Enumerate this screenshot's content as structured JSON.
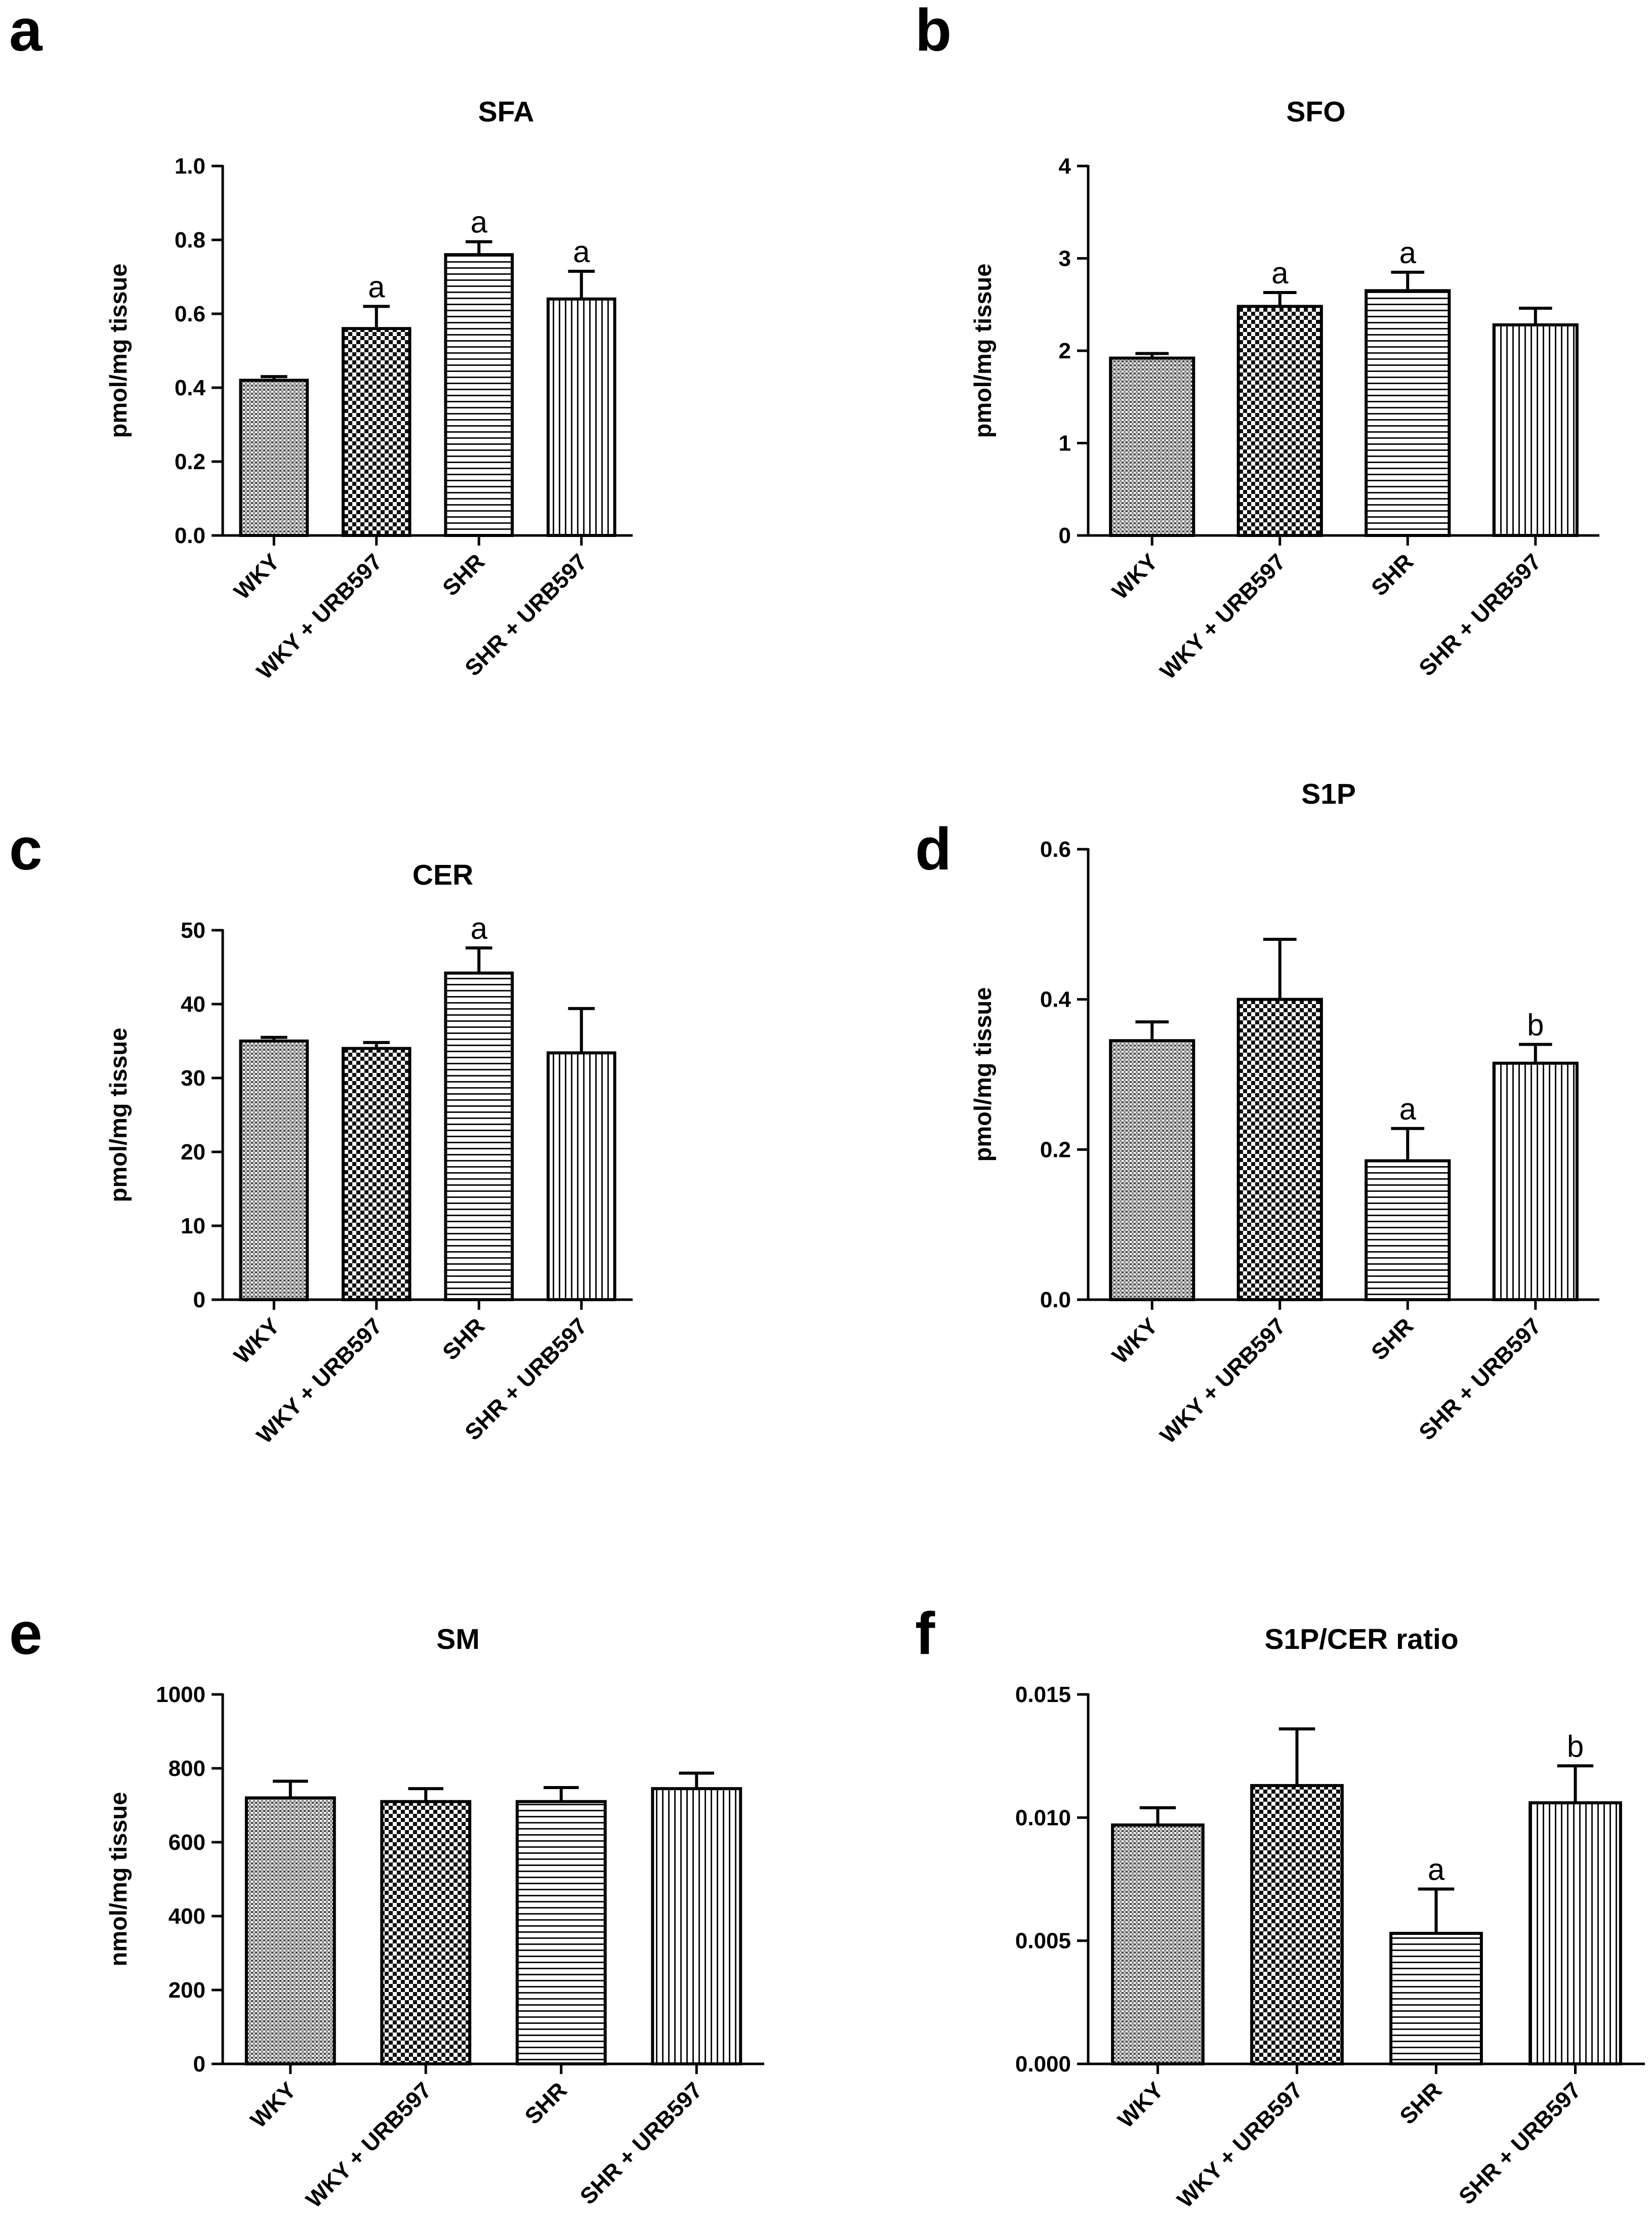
{
  "chart_data": [
    {
      "panel": "a",
      "type": "bar",
      "title": "SFA",
      "xlabel": "",
      "ylabel": "pmol/mg tissue",
      "ylim": [
        0,
        1.0
      ],
      "yticks": [
        "0.0",
        "0.2",
        "0.4",
        "0.6",
        "0.8",
        "1.0"
      ],
      "categories": [
        "WKY",
        "WKY + URB597",
        "SHR",
        "SHR + URB597"
      ],
      "values": [
        0.42,
        0.56,
        0.76,
        0.64
      ],
      "errors": [
        0.01,
        0.06,
        0.035,
        0.075
      ],
      "annotations": [
        "",
        "a",
        "a",
        "a"
      ]
    },
    {
      "panel": "b",
      "type": "bar",
      "title": "SFO",
      "xlabel": "",
      "ylabel": "pmol/mg tissue",
      "ylim": [
        0,
        4
      ],
      "yticks": [
        "0",
        "1",
        "2",
        "3",
        "4"
      ],
      "categories": [
        "WKY",
        "WKY + URB597",
        "SHR",
        "SHR + URB597"
      ],
      "values": [
        1.92,
        2.48,
        2.65,
        2.28
      ],
      "errors": [
        0.05,
        0.15,
        0.2,
        0.18
      ],
      "annotations": [
        "",
        "a",
        "a",
        ""
      ]
    },
    {
      "panel": "c",
      "type": "bar",
      "title": "CER",
      "xlabel": "",
      "ylabel": "pmol/mg tissue",
      "ylim": [
        0,
        50
      ],
      "yticks": [
        "0",
        "10",
        "20",
        "30",
        "40",
        "50"
      ],
      "categories": [
        "WKY",
        "WKY + URB597",
        "SHR",
        "SHR + URB597"
      ],
      "values": [
        35.0,
        34.0,
        44.2,
        33.4
      ],
      "errors": [
        0.5,
        0.8,
        3.4,
        6.0
      ],
      "annotations": [
        "",
        "",
        "a",
        ""
      ]
    },
    {
      "panel": "d",
      "type": "bar",
      "title": "S1P",
      "xlabel": "",
      "ylabel": "pmol/mg tissue",
      "ylim": [
        0,
        0.6
      ],
      "yticks": [
        "0.0",
        "0.2",
        "0.4",
        "0.6"
      ],
      "categories": [
        "WKY",
        "WKY + URB597",
        "SHR",
        "SHR + URB597"
      ],
      "values": [
        0.345,
        0.4,
        0.185,
        0.315
      ],
      "errors": [
        0.025,
        0.08,
        0.043,
        0.025
      ],
      "annotations": [
        "",
        "",
        "a",
        "b"
      ]
    },
    {
      "panel": "e",
      "type": "bar",
      "title": "SM",
      "xlabel": "",
      "ylabel": "nmol/mg  tissue",
      "ylim": [
        0,
        1000
      ],
      "yticks": [
        "0",
        "200",
        "400",
        "600",
        "800",
        "1000"
      ],
      "categories": [
        "WKY",
        "WKY + URB597",
        "SHR",
        "SHR + URB597"
      ],
      "values": [
        720,
        710,
        710,
        745
      ],
      "errors": [
        45,
        35,
        38,
        42
      ],
      "annotations": [
        "",
        "",
        "",
        ""
      ]
    },
    {
      "panel": "f",
      "type": "bar",
      "title": "S1P/CER ratio",
      "xlabel": "",
      "ylabel": "",
      "ylim": [
        0,
        0.015
      ],
      "yticks": [
        "0.000",
        "0.005",
        "0.010",
        "0.015"
      ],
      "categories": [
        "WKY",
        "WKY + URB597",
        "SHR",
        "SHR + URB597"
      ],
      "values": [
        0.0097,
        0.0113,
        0.0053,
        0.0106
      ],
      "errors": [
        0.0007,
        0.0023,
        0.0018,
        0.0015
      ],
      "annotations": [
        "",
        "",
        "a",
        "b"
      ]
    }
  ],
  "pattern_legend_names": [
    "fine-grid-texture",
    "checkerboard-texture",
    "horizontal-stripes",
    "vertical-stripes"
  ]
}
